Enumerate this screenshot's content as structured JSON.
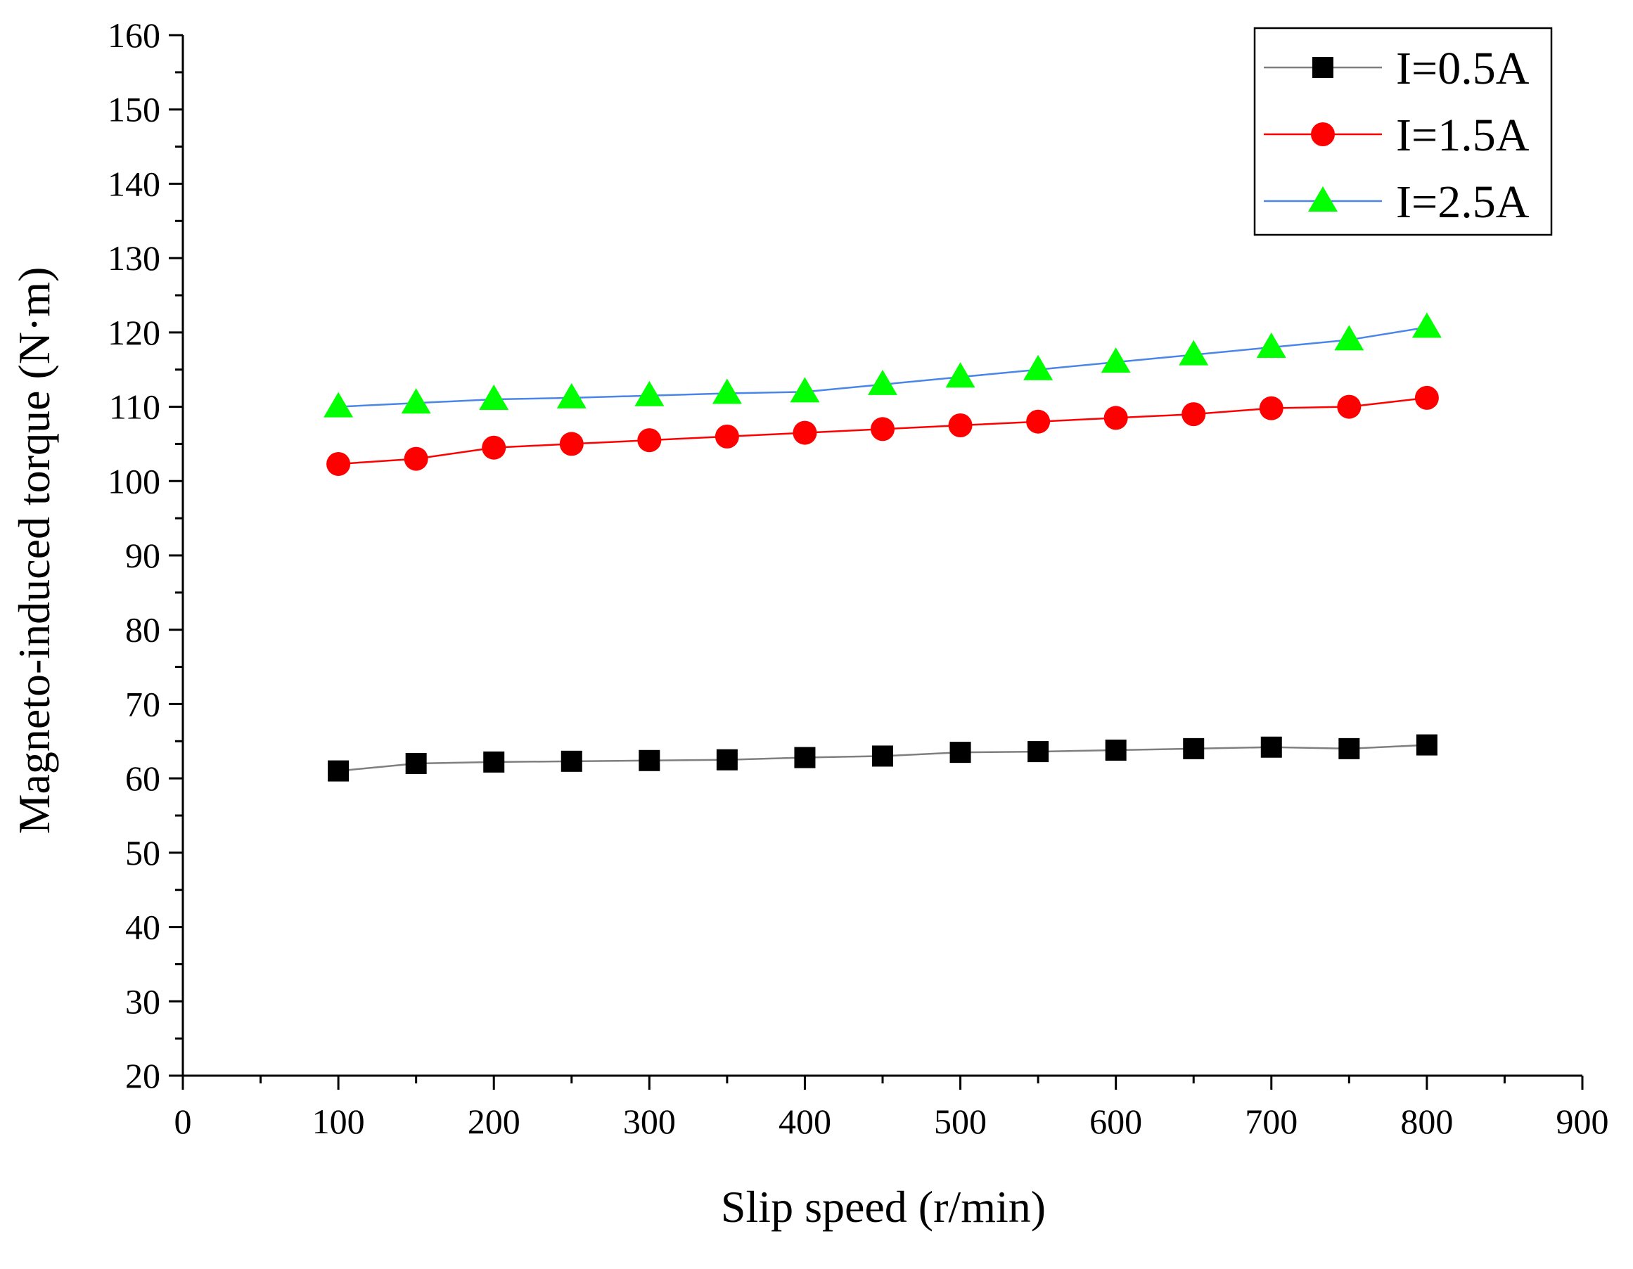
{
  "chart_data": {
    "type": "line",
    "title": "",
    "xlabel": "Slip speed (r/min)",
    "ylabel": "Magneto-induced torque (N·m)",
    "xlim": [
      0,
      900
    ],
    "ylim": [
      20,
      160
    ],
    "xticks": [
      0,
      100,
      200,
      300,
      400,
      500,
      600,
      700,
      800,
      900
    ],
    "yticks": [
      20,
      30,
      40,
      50,
      60,
      70,
      80,
      90,
      100,
      110,
      120,
      130,
      140,
      150,
      160
    ],
    "grid": false,
    "legend_position": "top-right",
    "x": [
      100,
      150,
      200,
      250,
      300,
      350,
      400,
      450,
      500,
      550,
      600,
      650,
      700,
      750,
      800
    ],
    "series": [
      {
        "name": "I=0.5A",
        "marker": "square",
        "line_color": "#7f7f7f",
        "marker_color": "#000000",
        "values": [
          61.0,
          62.0,
          62.2,
          62.3,
          62.4,
          62.5,
          62.8,
          63.0,
          63.5,
          63.6,
          63.8,
          64.0,
          64.2,
          64.0,
          64.5
        ]
      },
      {
        "name": "I=1.5A",
        "marker": "circle",
        "line_color": "#ff0000",
        "marker_color": "#ff0000",
        "values": [
          102.3,
          103.0,
          104.5,
          105.0,
          105.5,
          106.0,
          106.5,
          107.0,
          107.5,
          108.0,
          108.5,
          109.0,
          109.8,
          110.0,
          111.2
        ]
      },
      {
        "name": "I=2.5A",
        "marker": "triangle",
        "line_color": "#4a86e8",
        "marker_color": "#00ff00",
        "values": [
          110.0,
          110.5,
          111.0,
          111.2,
          111.5,
          111.8,
          112.0,
          113.0,
          114.0,
          115.0,
          116.0,
          117.0,
          118.0,
          119.0,
          120.7
        ]
      }
    ]
  }
}
